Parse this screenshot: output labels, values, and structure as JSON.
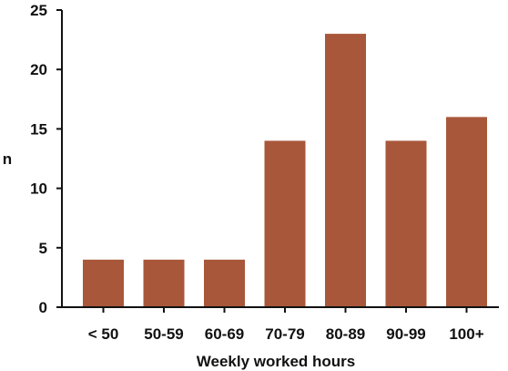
{
  "chart_data": {
    "type": "bar",
    "categories": [
      "< 50",
      "50-59",
      "60-69",
      "70-79",
      "80-89",
      "90-99",
      "100+"
    ],
    "values": [
      4,
      4,
      4,
      14,
      23,
      14,
      16
    ],
    "title": "",
    "xlabel": "Weekly worked hours",
    "ylabel": "n",
    "ylim": [
      0,
      25
    ],
    "yticks": [
      0,
      5,
      10,
      15,
      20,
      25
    ],
    "grid": false,
    "colors": {
      "bar": "#a9573a"
    }
  }
}
